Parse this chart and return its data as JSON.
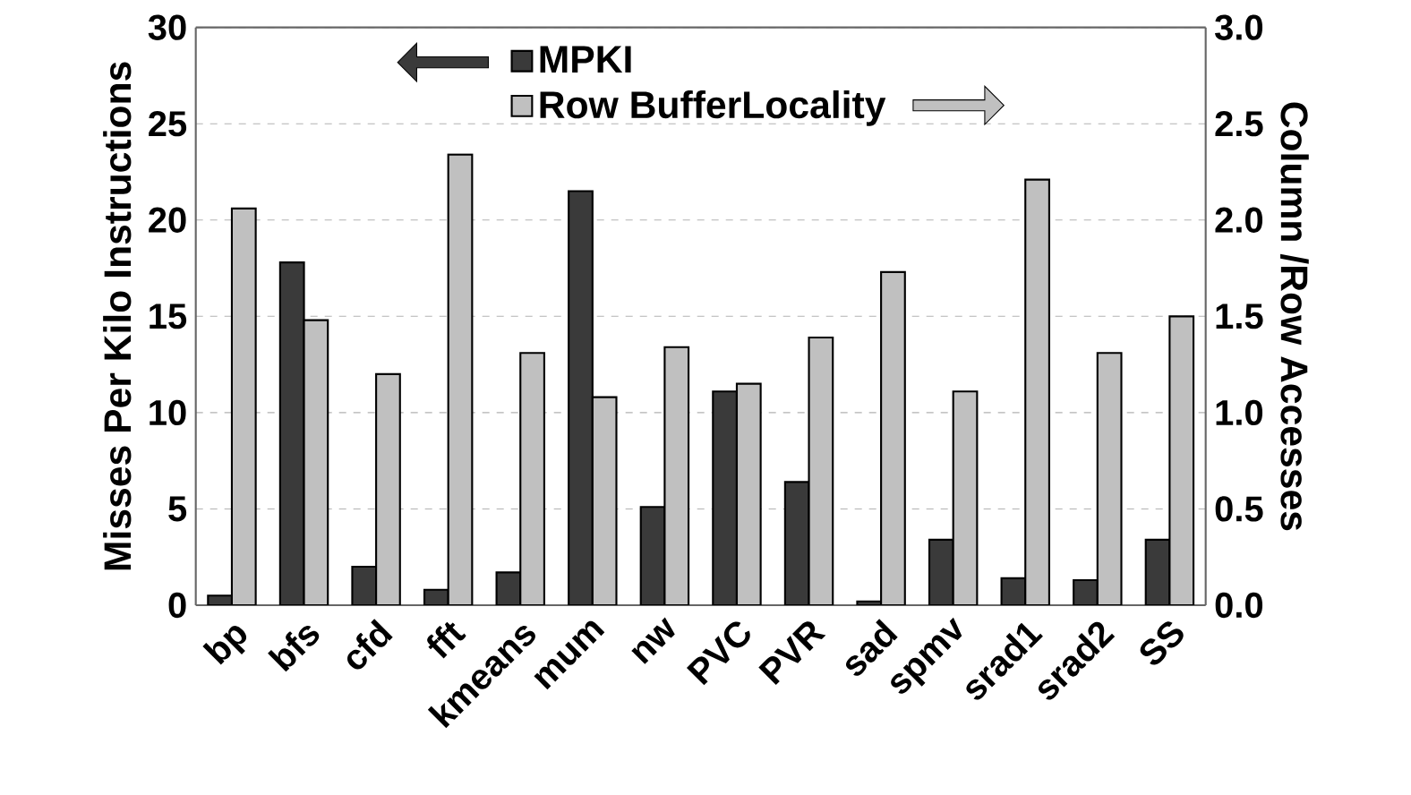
{
  "chart_data": {
    "type": "bar",
    "ylabel": "Misses Per Kilo Instructions",
    "y2label": "Column /Row Accesses",
    "categories": [
      "bp",
      "bfs",
      "cfd",
      "fft",
      "kmeans",
      "mum",
      "nw",
      "PVC",
      "PVR",
      "sad",
      "spmv",
      "srad1",
      "srad2",
      "SS"
    ],
    "series": [
      {
        "name": "MPKI",
        "color": "#3a3a3a",
        "values": [
          0.5,
          17.8,
          2.0,
          0.8,
          1.7,
          21.5,
          5.1,
          11.1,
          6.4,
          0.2,
          3.4,
          1.4,
          1.3,
          3.4
        ]
      },
      {
        "name": "Row BufferLocality",
        "color": "#c0c0c0",
        "axis": "y2",
        "values": [
          2.06,
          1.48,
          1.2,
          2.34,
          1.31,
          1.08,
          1.34,
          1.15,
          1.39,
          1.73,
          1.11,
          2.21,
          1.31,
          1.5
        ]
      }
    ],
    "ylim": [
      0,
      30
    ],
    "yticks": [
      0,
      5,
      10,
      15,
      20,
      25,
      30
    ],
    "y2lim": [
      0,
      3
    ],
    "y2ticks": [
      {
        "value": 0,
        "label": "0.0"
      },
      {
        "value": 0.5,
        "label": "0.5"
      },
      {
        "value": 1,
        "label": "1.0"
      },
      {
        "value": 1.5,
        "label": "1.5"
      },
      {
        "value": 2,
        "label": "2.0"
      },
      {
        "value": 2.5,
        "label": "2.5"
      },
      {
        "value": 3,
        "label": "3.0"
      }
    ],
    "grid": "y",
    "legend": "top"
  }
}
